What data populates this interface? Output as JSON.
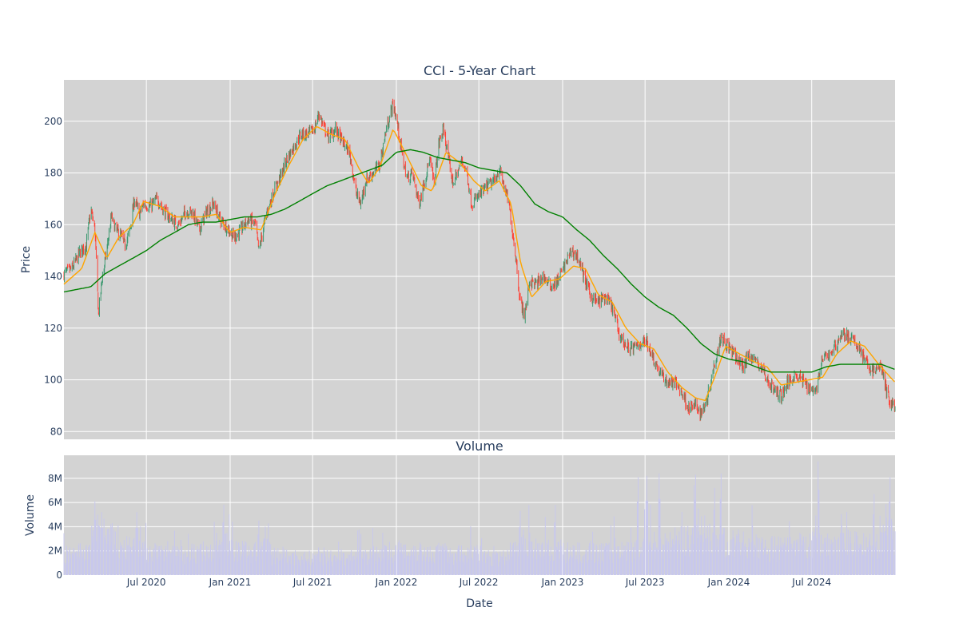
{
  "chart_data": [
    {
      "type": "candlestick",
      "title": "CCI - 5-Year Chart",
      "ylabel": "Price",
      "ylim": [
        77,
        216
      ],
      "yticks": [
        80,
        100,
        120,
        140,
        160,
        180,
        200
      ],
      "x_range": [
        "2020-01-02",
        "2024-12-31"
      ],
      "x_tick_labels": [
        "Jul 2020",
        "Jan 2021",
        "Jul 2021",
        "Jan 2022",
        "Jul 2022",
        "Jan 2023",
        "Jul 2023",
        "Jan 2024",
        "Jul 2024"
      ],
      "grid": true,
      "legend": "none",
      "colors": {
        "increasing": "#3d9970",
        "decreasing": "#ff4136",
        "ma_short": "#ffa500",
        "ma_long": "#008000",
        "plot_bg": "#d3d3d3"
      },
      "close_points": [
        [
          "2020-01-02",
          141
        ],
        [
          "2020-01-20",
          143
        ],
        [
          "2020-02-05",
          149
        ],
        [
          "2020-02-20",
          152
        ],
        [
          "2020-03-01",
          166
        ],
        [
          "2020-03-10",
          158
        ],
        [
          "2020-03-18",
          125
        ],
        [
          "2020-03-25",
          138
        ],
        [
          "2020-04-05",
          150
        ],
        [
          "2020-04-15",
          163
        ],
        [
          "2020-04-25",
          158
        ],
        [
          "2020-05-05",
          156
        ],
        [
          "2020-05-15",
          152
        ],
        [
          "2020-05-25",
          157
        ],
        [
          "2020-06-05",
          170
        ],
        [
          "2020-06-15",
          164
        ],
        [
          "2020-06-25",
          168
        ],
        [
          "2020-07-10",
          167
        ],
        [
          "2020-07-25",
          170
        ],
        [
          "2020-08-10",
          165
        ],
        [
          "2020-08-25",
          162
        ],
        [
          "2020-09-10",
          160
        ],
        [
          "2020-09-25",
          165
        ],
        [
          "2020-10-10",
          165
        ],
        [
          "2020-10-25",
          158
        ],
        [
          "2020-11-10",
          165
        ],
        [
          "2020-11-25",
          168
        ],
        [
          "2020-12-10",
          162
        ],
        [
          "2020-12-25",
          159
        ],
        [
          "2021-01-10",
          155
        ],
        [
          "2021-01-25",
          158
        ],
        [
          "2021-02-10",
          162
        ],
        [
          "2021-02-25",
          160
        ],
        [
          "2021-03-05",
          150
        ],
        [
          "2021-03-20",
          163
        ],
        [
          "2021-04-05",
          172
        ],
        [
          "2021-04-20",
          178
        ],
        [
          "2021-05-05",
          185
        ],
        [
          "2021-05-20",
          190
        ],
        [
          "2021-06-05",
          195
        ],
        [
          "2021-06-20",
          195
        ],
        [
          "2021-07-05",
          197
        ],
        [
          "2021-07-15",
          203
        ],
        [
          "2021-07-25",
          198
        ],
        [
          "2021-08-05",
          194
        ],
        [
          "2021-08-20",
          197
        ],
        [
          "2021-09-05",
          192
        ],
        [
          "2021-09-20",
          188
        ],
        [
          "2021-10-05",
          172
        ],
        [
          "2021-10-15",
          168
        ],
        [
          "2021-10-25",
          177
        ],
        [
          "2021-11-10",
          180
        ],
        [
          "2021-11-25",
          183
        ],
        [
          "2021-12-10",
          197
        ],
        [
          "2021-12-25",
          207
        ],
        [
          "2022-01-05",
          197
        ],
        [
          "2022-01-15",
          185
        ],
        [
          "2022-01-25",
          178
        ],
        [
          "2022-02-05",
          180
        ],
        [
          "2022-02-20",
          168
        ],
        [
          "2022-03-05",
          178
        ],
        [
          "2022-03-15",
          185
        ],
        [
          "2022-03-25",
          176
        ],
        [
          "2022-04-05",
          192
        ],
        [
          "2022-04-15",
          197
        ],
        [
          "2022-04-25",
          186
        ],
        [
          "2022-05-05",
          176
        ],
        [
          "2022-05-15",
          180
        ],
        [
          "2022-05-25",
          185
        ],
        [
          "2022-06-05",
          180
        ],
        [
          "2022-06-15",
          168
        ],
        [
          "2022-06-25",
          170
        ],
        [
          "2022-07-05",
          172
        ],
        [
          "2022-07-20",
          175
        ],
        [
          "2022-08-05",
          177
        ],
        [
          "2022-08-15",
          182
        ],
        [
          "2022-08-25",
          175
        ],
        [
          "2022-09-05",
          168
        ],
        [
          "2022-09-20",
          148
        ],
        [
          "2022-09-30",
          130
        ],
        [
          "2022-10-10",
          125
        ],
        [
          "2022-10-20",
          138
        ],
        [
          "2022-11-05",
          137
        ],
        [
          "2022-11-20",
          140
        ],
        [
          "2022-12-05",
          136
        ],
        [
          "2022-12-20",
          138
        ],
        [
          "2023-01-05",
          144
        ],
        [
          "2023-01-20",
          150
        ],
        [
          "2023-02-05",
          147
        ],
        [
          "2023-02-20",
          138
        ],
        [
          "2023-03-05",
          132
        ],
        [
          "2023-03-20",
          130
        ],
        [
          "2023-04-05",
          132
        ],
        [
          "2023-04-20",
          128
        ],
        [
          "2023-05-05",
          118
        ],
        [
          "2023-05-20",
          113
        ],
        [
          "2023-06-05",
          112
        ],
        [
          "2023-06-20",
          114
        ],
        [
          "2023-07-05",
          115
        ],
        [
          "2023-07-20",
          108
        ],
        [
          "2023-08-05",
          102
        ],
        [
          "2023-08-20",
          99
        ],
        [
          "2023-09-05",
          99
        ],
        [
          "2023-09-20",
          95
        ],
        [
          "2023-10-05",
          89
        ],
        [
          "2023-10-20",
          90
        ],
        [
          "2023-11-01",
          87
        ],
        [
          "2023-11-15",
          93
        ],
        [
          "2023-11-25",
          102
        ],
        [
          "2023-12-05",
          110
        ],
        [
          "2023-12-15",
          117
        ],
        [
          "2023-12-30",
          113
        ],
        [
          "2024-01-15",
          109
        ],
        [
          "2024-02-01",
          105
        ],
        [
          "2024-02-15",
          110
        ],
        [
          "2024-03-01",
          107
        ],
        [
          "2024-03-15",
          104
        ],
        [
          "2024-03-25",
          100
        ],
        [
          "2024-04-10",
          96
        ],
        [
          "2024-04-25",
          94
        ],
        [
          "2024-05-10",
          99
        ],
        [
          "2024-05-25",
          102
        ],
        [
          "2024-06-10",
          100
        ],
        [
          "2024-06-25",
          97
        ],
        [
          "2024-07-10",
          96
        ],
        [
          "2024-07-25",
          108
        ],
        [
          "2024-08-10",
          110
        ],
        [
          "2024-08-25",
          114
        ],
        [
          "2024-09-05",
          118
        ],
        [
          "2024-09-15",
          117
        ],
        [
          "2024-09-30",
          115
        ],
        [
          "2024-10-15",
          112
        ],
        [
          "2024-10-30",
          106
        ],
        [
          "2024-11-15",
          103
        ],
        [
          "2024-11-30",
          106
        ],
        [
          "2024-12-10",
          97
        ],
        [
          "2024-12-20",
          91
        ],
        [
          "2024-12-31",
          90
        ]
      ],
      "ma_short_points": [
        [
          "2020-01-02",
          137
        ],
        [
          "2020-02-10",
          143
        ],
        [
          "2020-03-10",
          157
        ],
        [
          "2020-04-05",
          147
        ],
        [
          "2020-05-01",
          155
        ],
        [
          "2020-06-01",
          160
        ],
        [
          "2020-06-25",
          169
        ],
        [
          "2020-08-01",
          167
        ],
        [
          "2020-09-01",
          163
        ],
        [
          "2020-10-01",
          163
        ],
        [
          "2020-11-01",
          163
        ],
        [
          "2020-12-01",
          164
        ],
        [
          "2021-01-01",
          157
        ],
        [
          "2021-02-01",
          159
        ],
        [
          "2021-03-10",
          158
        ],
        [
          "2021-04-10",
          172
        ],
        [
          "2021-05-10",
          183
        ],
        [
          "2021-06-10",
          193
        ],
        [
          "2021-07-10",
          198
        ],
        [
          "2021-08-10",
          195
        ],
        [
          "2021-09-10",
          193
        ],
        [
          "2021-10-10",
          182
        ],
        [
          "2021-11-01",
          176
        ],
        [
          "2021-11-25",
          182
        ],
        [
          "2021-12-25",
          197
        ],
        [
          "2022-01-20",
          188
        ],
        [
          "2022-02-25",
          175
        ],
        [
          "2022-03-20",
          173
        ],
        [
          "2022-04-20",
          188
        ],
        [
          "2022-05-20",
          184
        ],
        [
          "2022-06-20",
          177
        ],
        [
          "2022-07-15",
          173
        ],
        [
          "2022-08-15",
          177
        ],
        [
          "2022-09-10",
          168
        ],
        [
          "2022-10-01",
          145
        ],
        [
          "2022-10-25",
          132
        ],
        [
          "2022-11-25",
          138
        ],
        [
          "2022-12-25",
          139
        ],
        [
          "2023-01-25",
          144
        ],
        [
          "2023-02-20",
          143
        ],
        [
          "2023-03-20",
          133
        ],
        [
          "2023-04-20",
          130
        ],
        [
          "2023-05-20",
          120
        ],
        [
          "2023-06-20",
          114
        ],
        [
          "2023-07-20",
          112
        ],
        [
          "2023-08-20",
          103
        ],
        [
          "2023-09-20",
          97
        ],
        [
          "2023-10-20",
          93
        ],
        [
          "2023-11-10",
          92
        ],
        [
          "2023-12-01",
          101
        ],
        [
          "2023-12-25",
          113
        ],
        [
          "2024-01-25",
          110
        ],
        [
          "2024-02-25",
          107
        ],
        [
          "2024-03-25",
          105
        ],
        [
          "2024-04-25",
          98
        ],
        [
          "2024-05-25",
          99
        ],
        [
          "2024-06-25",
          100
        ],
        [
          "2024-07-25",
          101
        ],
        [
          "2024-08-25",
          110
        ],
        [
          "2024-09-25",
          115
        ],
        [
          "2024-10-25",
          113
        ],
        [
          "2024-11-25",
          106
        ],
        [
          "2024-12-31",
          99
        ]
      ],
      "ma_long_points": [
        [
          "2020-01-02",
          134
        ],
        [
          "2020-03-01",
          136
        ],
        [
          "2020-04-01",
          141
        ],
        [
          "2020-05-01",
          144
        ],
        [
          "2020-06-01",
          147
        ],
        [
          "2020-07-01",
          150
        ],
        [
          "2020-08-01",
          154
        ],
        [
          "2020-09-01",
          157
        ],
        [
          "2020-10-01",
          160
        ],
        [
          "2020-11-01",
          161
        ],
        [
          "2020-12-01",
          161
        ],
        [
          "2021-01-01",
          162
        ],
        [
          "2021-02-01",
          163
        ],
        [
          "2021-03-01",
          163
        ],
        [
          "2021-04-01",
          164
        ],
        [
          "2021-05-01",
          166
        ],
        [
          "2021-06-01",
          169
        ],
        [
          "2021-07-01",
          172
        ],
        [
          "2021-08-01",
          175
        ],
        [
          "2021-09-01",
          177
        ],
        [
          "2021-10-01",
          179
        ],
        [
          "2021-11-01",
          181
        ],
        [
          "2021-12-01",
          183
        ],
        [
          "2022-01-01",
          188
        ],
        [
          "2022-02-01",
          189
        ],
        [
          "2022-03-01",
          188
        ],
        [
          "2022-04-01",
          186
        ],
        [
          "2022-05-01",
          185
        ],
        [
          "2022-06-01",
          184
        ],
        [
          "2022-07-01",
          182
        ],
        [
          "2022-08-01",
          181
        ],
        [
          "2022-09-01",
          180
        ],
        [
          "2022-10-01",
          175
        ],
        [
          "2022-11-01",
          168
        ],
        [
          "2022-12-01",
          165
        ],
        [
          "2023-01-01",
          163
        ],
        [
          "2023-02-01",
          158
        ],
        [
          "2023-03-01",
          154
        ],
        [
          "2023-04-01",
          148
        ],
        [
          "2023-05-01",
          143
        ],
        [
          "2023-06-01",
          137
        ],
        [
          "2023-07-01",
          132
        ],
        [
          "2023-08-01",
          128
        ],
        [
          "2023-09-01",
          125
        ],
        [
          "2023-10-01",
          120
        ],
        [
          "2023-11-01",
          114
        ],
        [
          "2023-12-01",
          110
        ],
        [
          "2024-01-01",
          108
        ],
        [
          "2024-02-01",
          107
        ],
        [
          "2024-03-01",
          105
        ],
        [
          "2024-04-01",
          103
        ],
        [
          "2024-05-01",
          103
        ],
        [
          "2024-06-01",
          103
        ],
        [
          "2024-07-01",
          103
        ],
        [
          "2024-08-01",
          105
        ],
        [
          "2024-09-01",
          106
        ],
        [
          "2024-10-01",
          106
        ],
        [
          "2024-11-01",
          106
        ],
        [
          "2024-12-01",
          106
        ],
        [
          "2024-12-31",
          104
        ]
      ]
    },
    {
      "type": "bar",
      "title": "Volume",
      "xlabel": "Date",
      "ylabel": "Volume",
      "ylim": [
        0,
        9900000
      ],
      "yticks": [
        0,
        2000000,
        4000000,
        6000000,
        8000000
      ],
      "ytick_labels": [
        "0",
        "2M",
        "4M",
        "6M",
        "8M"
      ],
      "color": "#c8c8ec",
      "monthly_avg_volume": [
        1800000,
        2000000,
        3800000,
        3200000,
        2400000,
        2300000,
        2000000,
        1900000,
        1900000,
        2000000,
        2200000,
        2700000,
        2300000,
        2100000,
        2400000,
        1800000,
        1600000,
        1500000,
        1500000,
        1500000,
        1600000,
        1700000,
        1800000,
        2100000,
        2200000,
        2200000,
        2000000,
        2000000,
        1900000,
        1900000,
        1600000,
        1500000,
        2100000,
        2800000,
        2500000,
        2300000,
        2000000,
        2000000,
        2000000,
        2100000,
        2200000,
        2400000,
        2700000,
        2800000,
        3000000,
        3100000,
        3200000,
        3100000,
        2800000,
        2600000,
        2500000,
        2400000,
        2400000,
        2600000,
        2700000,
        2700000,
        2800000,
        2700000,
        2800000,
        3600000
      ],
      "spikes": [
        [
          "2020-03-10",
          6100000
        ],
        [
          "2020-03-25",
          5200000
        ],
        [
          "2020-06-10",
          5200000
        ],
        [
          "2020-12-18",
          5800000
        ],
        [
          "2021-03-05",
          4500000
        ],
        [
          "2021-03-19",
          4000000
        ],
        [
          "2022-09-30",
          5300000
        ],
        [
          "2022-12-16",
          5800000
        ],
        [
          "2023-06-16",
          8100000
        ],
        [
          "2023-07-05",
          8200000
        ],
        [
          "2023-08-01",
          8400000
        ],
        [
          "2023-10-20",
          8300000
        ],
        [
          "2023-12-15",
          8400000
        ],
        [
          "2023-12-01",
          7200000
        ],
        [
          "2024-07-15",
          9400000
        ],
        [
          "2024-11-15",
          6700000
        ],
        [
          "2024-12-20",
          8100000
        ]
      ]
    }
  ]
}
